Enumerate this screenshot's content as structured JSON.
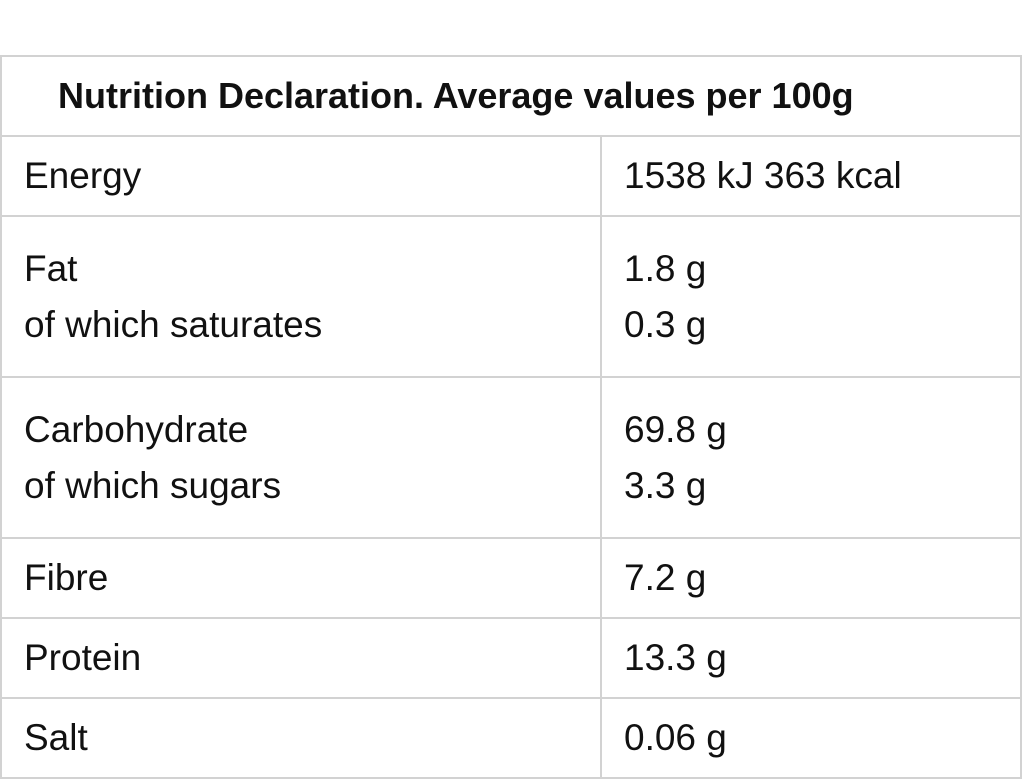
{
  "title": "Nutrition Declaration. Average values per 100g",
  "rows": [
    {
      "labels": [
        "Energy"
      ],
      "values": [
        "1538 kJ 363 kcal"
      ]
    },
    {
      "labels": [
        "Fat",
        "of which saturates"
      ],
      "values": [
        "1.8 g",
        "0.3 g"
      ]
    },
    {
      "labels": [
        "Carbohydrate",
        "of which sugars"
      ],
      "values": [
        "69.8 g",
        "3.3 g"
      ]
    },
    {
      "labels": [
        "Fibre"
      ],
      "values": [
        "7.2 g"
      ]
    },
    {
      "labels": [
        "Protein"
      ],
      "values": [
        "13.3 g"
      ]
    },
    {
      "labels": [
        "Salt"
      ],
      "values": [
        "0.06 g"
      ]
    }
  ]
}
